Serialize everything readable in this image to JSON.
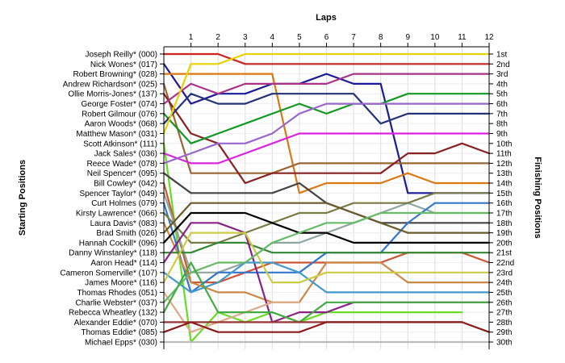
{
  "chart_data": {
    "type": "line",
    "title": "",
    "xlabel": "Laps",
    "ylabel": "Starting Positions",
    "y2label": "Finishing Positions",
    "x": [
      0,
      1,
      2,
      3,
      4,
      5,
      6,
      7,
      8,
      9,
      10,
      11,
      12
    ],
    "xlim": [
      0,
      12
    ],
    "ylim": [
      1,
      30
    ],
    "grid": true,
    "starting_labels": [
      "Joseph Reilly* (000)",
      "Nick Wones* (017)",
      "Robert Browning* (028)",
      "Andrew Richardson* (025)",
      "Ollie Morris-Jones* (137)",
      "George Foster* (074)",
      "Robert Gilmour (076)",
      "Aaron Woods* (068)",
      "Matthew Mason* (031)",
      "Scott Atkinson* (111)",
      "Jack Sales* (036)",
      "Reece Wade* (078)",
      "Neil Spencer* (095)",
      "Bill Cowley* (042)",
      "Spencer Taylor* (049)",
      "Curt Holmes (079)",
      "Kirsty Lawrence* (066)",
      "Laura Davis* (083)",
      "Brad Smith (026)",
      "Hannah Cockill* (096)",
      "Danny Winstanley* (118)",
      "Aaron Head* (114)",
      "Cameron Somerville* (107)",
      "James Moore* (116)",
      "Thomas Rhodes (051)",
      "Charlie Webster* (037)",
      "Rebecca Wheatley (132)",
      "Alexander Eddie* (070)",
      "Thomas Eddie* (085)",
      "Michael Epps* (030)"
    ],
    "finishing_labels": [
      "1st",
      "2nd",
      "3rd",
      "4th",
      "5th",
      "6th",
      "7th",
      "8th",
      "9th",
      "10th",
      "11th",
      "12th",
      "13th",
      "14th",
      "15th",
      "16th",
      "17th",
      "18th",
      "19th",
      "20th",
      "21st",
      "22nd",
      "23rd",
      "24th",
      "25th",
      "26th",
      "27th",
      "28th",
      "29th",
      "30th"
    ],
    "series": [
      {
        "color": "#cc2222",
        "values": [
          1,
          1,
          1,
          2,
          2,
          2,
          2,
          2,
          2,
          2,
          2,
          2,
          2
        ]
      },
      {
        "color": "#1a1a99",
        "values": [
          2,
          6,
          5,
          5,
          4,
          4,
          3,
          4,
          4,
          15,
          15,
          15,
          15
        ]
      },
      {
        "color": "#dd7711",
        "values": [
          3,
          3,
          3,
          3,
          3,
          15,
          14,
          14,
          14,
          13,
          14,
          14,
          14
        ]
      },
      {
        "color": "#996633",
        "values": [
          4,
          13,
          13,
          13,
          13,
          12,
          12,
          12,
          12,
          12,
          12,
          12,
          12
        ]
      },
      {
        "color": "#882222",
        "values": [
          5,
          9,
          10,
          14,
          13,
          13,
          13,
          13,
          13,
          11,
          11,
          10,
          11
        ]
      },
      {
        "color": "#aa3388",
        "values": [
          6,
          4,
          5,
          4,
          4,
          4,
          4,
          3,
          3,
          3,
          3,
          3,
          3
        ]
      },
      {
        "color": "#119922",
        "values": [
          7,
          10,
          9,
          8,
          7,
          6,
          7,
          6,
          6,
          5,
          5,
          5,
          5
        ]
      },
      {
        "color": "#223377",
        "values": [
          8,
          5,
          6,
          6,
          5,
          5,
          5,
          5,
          8,
          7,
          7,
          7,
          7
        ]
      },
      {
        "color": "#e8d200",
        "values": [
          9,
          2,
          2,
          1,
          1,
          1,
          1,
          1,
          1,
          1,
          1,
          1,
          1
        ]
      },
      {
        "color": "#66dd22",
        "values": [
          10,
          30,
          27,
          28,
          27,
          28,
          27,
          27,
          27,
          27,
          27,
          27,
          null
        ]
      },
      {
        "color": "#dd22dd",
        "values": [
          11,
          12,
          12,
          11,
          10,
          9,
          9,
          9,
          9,
          9,
          9,
          9,
          9
        ]
      },
      {
        "color": "#9966cc",
        "values": [
          12,
          11,
          10,
          10,
          9,
          7,
          6,
          6,
          6,
          6,
          6,
          6,
          6
        ]
      },
      {
        "color": "#444444",
        "values": [
          13,
          15,
          15,
          15,
          15,
          14,
          16,
          17,
          18,
          18,
          18,
          18,
          18
        ]
      },
      {
        "color": "#cc5533",
        "values": [
          14,
          24,
          24,
          23,
          22,
          22,
          22,
          22,
          22,
          21,
          21,
          21,
          22
        ]
      },
      {
        "color": "#8fa7a0",
        "values": [
          15,
          23,
          23,
          22,
          20,
          20,
          19,
          18,
          17,
          16,
          17,
          17,
          17
        ]
      },
      {
        "color": "#3377cc",
        "values": [
          16,
          25,
          23,
          23,
          23,
          23,
          21,
          21,
          21,
          18,
          16,
          16,
          16
        ]
      },
      {
        "color": "#7a7a44",
        "values": [
          17,
          20,
          20,
          19,
          18,
          17,
          17,
          16,
          16,
          16,
          15,
          15,
          15
        ]
      },
      {
        "color": "#cc8844",
        "values": [
          18,
          24,
          25,
          25,
          26,
          26,
          22,
          22,
          22,
          24,
          24,
          24,
          24
        ]
      },
      {
        "color": "#6a5a2a",
        "values": [
          19,
          16,
          16,
          16,
          16,
          16,
          16,
          17,
          18,
          19,
          19,
          19,
          19
        ]
      },
      {
        "color": "#000000",
        "values": [
          20,
          17,
          17,
          17,
          18,
          19,
          19,
          20,
          20,
          20,
          20,
          20,
          20
        ]
      },
      {
        "color": "#338833",
        "values": [
          21,
          21,
          20,
          20,
          21,
          21,
          21,
          21,
          21,
          21,
          21,
          21,
          21
        ]
      },
      {
        "color": "#882288",
        "values": [
          22,
          18,
          18,
          19,
          28,
          27,
          27,
          26,
          26,
          26,
          26,
          26,
          26
        ]
      },
      {
        "color": "#4499cc",
        "values": [
          23,
          25,
          24,
          22,
          22,
          23,
          25,
          25,
          25,
          25,
          25,
          25,
          25
        ]
      },
      {
        "color": "#cccc44",
        "values": [
          24,
          19,
          19,
          19,
          24,
          24,
          23,
          23,
          23,
          23,
          23,
          23,
          23
        ]
      },
      {
        "color": "#ddaa88",
        "values": [
          25,
          29,
          28,
          27,
          26,
          26,
          null,
          null,
          null,
          null,
          null,
          null,
          null
        ]
      },
      {
        "color": "#66bb66",
        "values": [
          26,
          23,
          22,
          22,
          20,
          19,
          18,
          18,
          17,
          17,
          17,
          17,
          17
        ]
      },
      {
        "color": "#44aa44",
        "values": [
          27,
          22,
          27,
          27,
          27,
          28,
          26,
          26,
          26,
          26,
          26,
          26,
          26
        ]
      },
      {
        "color": "#993333",
        "values": [
          28,
          28,
          28,
          28,
          28,
          28,
          28,
          28,
          28,
          28,
          28,
          28,
          null
        ]
      },
      {
        "color": "#8b1a1a",
        "values": [
          29,
          28,
          29,
          29,
          29,
          29,
          28,
          28,
          28,
          28,
          28,
          28,
          29
        ]
      },
      {
        "color": "#bbbbbb",
        "values": [
          30,
          30,
          30,
          30,
          30,
          30,
          30,
          30,
          30,
          30,
          30,
          30,
          30
        ]
      }
    ]
  }
}
